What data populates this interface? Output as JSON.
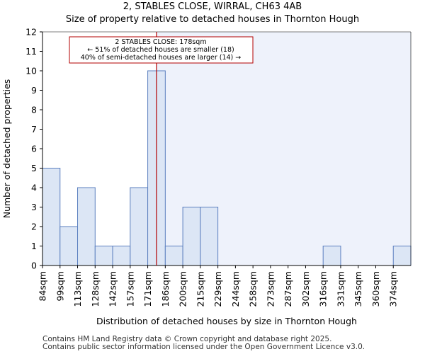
{
  "chart_data": {
    "type": "bar",
    "title": "2, STABLES CLOSE, WIRRAL, CH63 4AB",
    "subtitle": "Size of property relative to detached houses in Thornton Hough",
    "xlabel": "Distribution of detached houses by size in Thornton Hough",
    "ylabel": "Number of detached properties",
    "categories": [
      "84sqm",
      "99sqm",
      "113sqm",
      "128sqm",
      "142sqm",
      "157sqm",
      "171sqm",
      "186sqm",
      "200sqm",
      "215sqm",
      "229sqm",
      "244sqm",
      "258sqm",
      "273sqm",
      "287sqm",
      "302sqm",
      "316sqm",
      "331sqm",
      "345sqm",
      "360sqm",
      "374sqm"
    ],
    "values": [
      5,
      2,
      4,
      1,
      1,
      4,
      10,
      1,
      3,
      3,
      0,
      0,
      0,
      0,
      0,
      0,
      1,
      0,
      0,
      0,
      1
    ],
    "ylim": [
      0,
      12
    ],
    "yticks": [
      0,
      1,
      2,
      3,
      4,
      5,
      6,
      7,
      8,
      9,
      10,
      11,
      12
    ],
    "grid": false,
    "highlight": {
      "value_sqm": 178,
      "bin_index": 6,
      "fraction_within_bin": 0.5
    },
    "annotation": {
      "line1": "2 STABLES CLOSE: 178sqm",
      "line2": "← 51% of detached houses are smaller (18)",
      "line3": "40% of semi-detached houses are larger (14) →"
    },
    "colors": {
      "bar_fill": "#dce6f5",
      "bar_stroke": "#5b7fbf",
      "marker_line": "#b30000",
      "annotation_border": "#b30000",
      "right_shade": "#eef2fb",
      "axis": "#000000"
    }
  },
  "footer": {
    "line1": "Contains HM Land Registry data © Crown copyright and database right 2025.",
    "line2": "Contains public sector information licensed under the Open Government Licence v3.0."
  }
}
